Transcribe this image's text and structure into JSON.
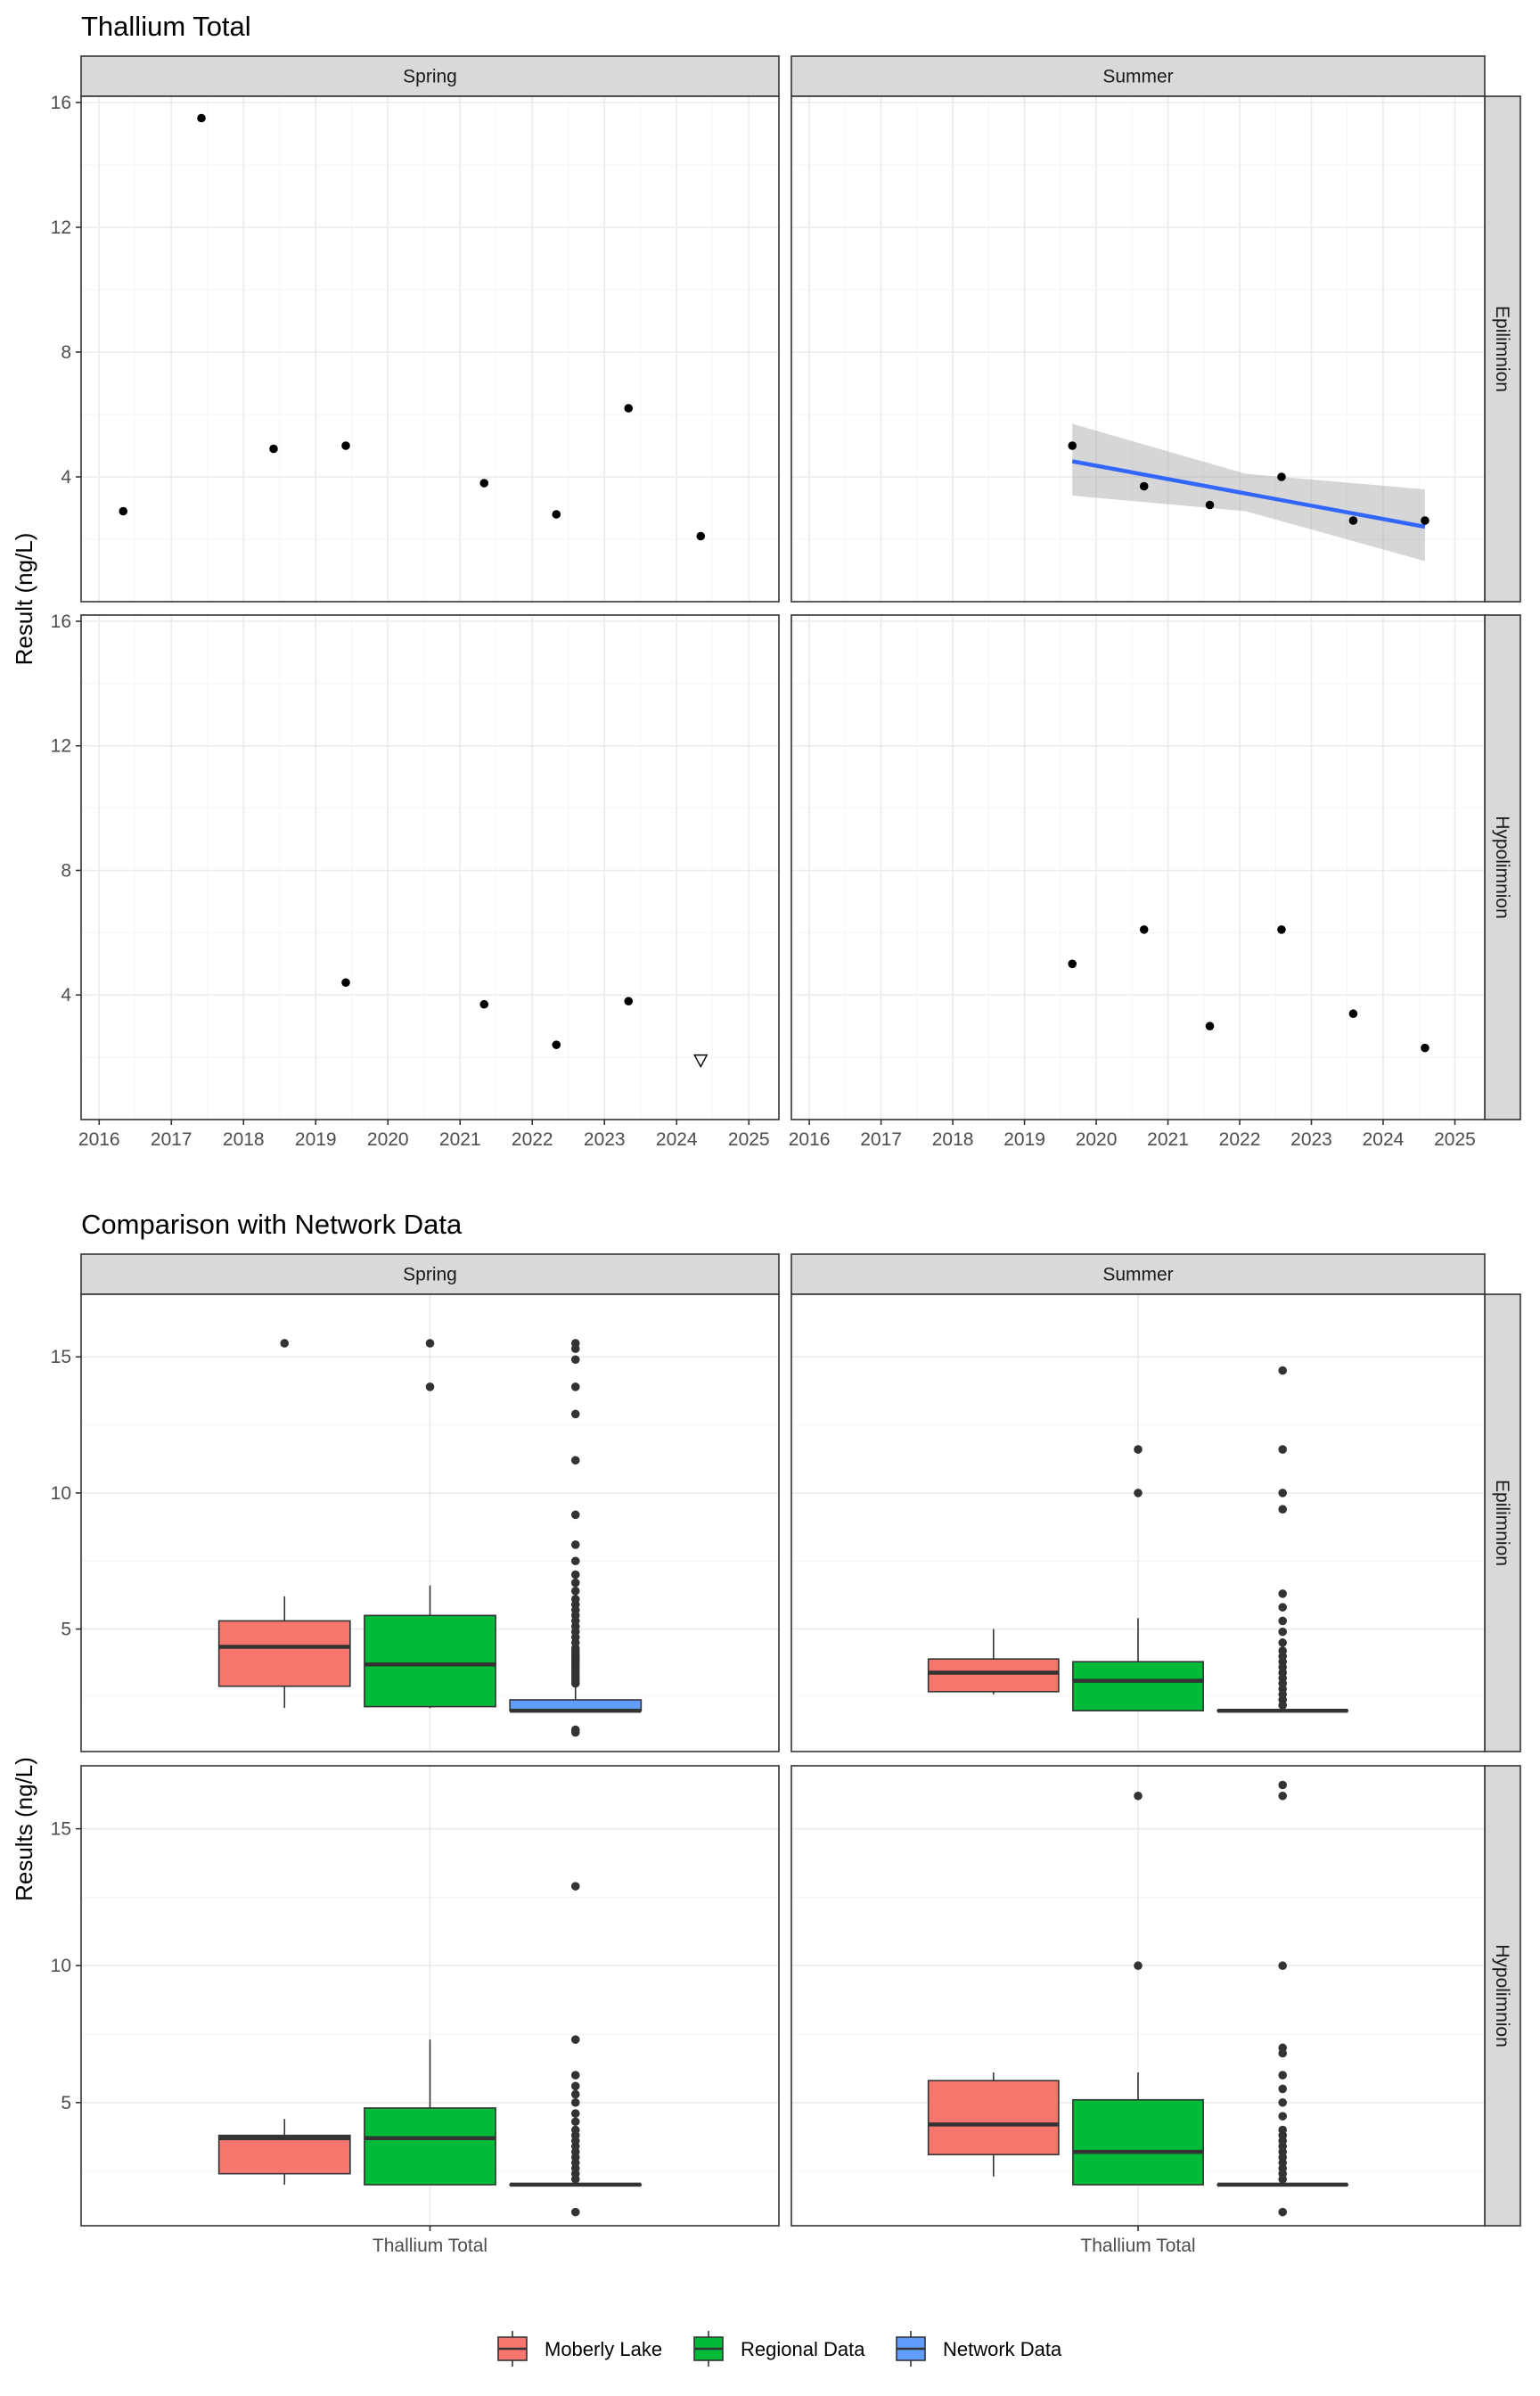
{
  "chart_data": [
    {
      "type": "scatter",
      "title": "Thallium Total",
      "ylabel": "Result (ng/L)",
      "xlabel": "",
      "x_type": "date",
      "xlim": [
        "2015-10",
        "2025-06"
      ],
      "ylim": [
        0,
        16.2
      ],
      "x_ticks": [
        "2016",
        "2017",
        "2018",
        "2019",
        "2020",
        "2021",
        "2022",
        "2023",
        "2024",
        "2025"
      ],
      "y_ticks": [
        "4",
        "8",
        "12",
        "16"
      ],
      "y_tick_values": [
        4,
        8,
        12,
        16
      ],
      "columns": [
        "Spring",
        "Summer"
      ],
      "rows": [
        "Epilimnion",
        "Hypolimnion"
      ],
      "grid": true,
      "panels": [
        {
          "column": "Spring",
          "row": "Epilimnion",
          "points": [
            {
              "x": "2016-05",
              "y": 2.9
            },
            {
              "x": "2017-06",
              "y": 15.5
            },
            {
              "x": "2018-06",
              "y": 4.9
            },
            {
              "x": "2019-06",
              "y": 5.0
            },
            {
              "x": "2021-05",
              "y": 3.8
            },
            {
              "x": "2022-05",
              "y": 2.8
            },
            {
              "x": "2023-05",
              "y": 6.2
            },
            {
              "x": "2024-05",
              "y": 2.1
            }
          ]
        },
        {
          "column": "Summer",
          "row": "Epilimnion",
          "points": [
            {
              "x": "2019-09",
              "y": 5.0
            },
            {
              "x": "2020-09",
              "y": 3.7
            },
            {
              "x": "2021-08",
              "y": 3.1
            },
            {
              "x": "2022-08",
              "y": 4.0
            },
            {
              "x": "2023-08",
              "y": 2.6
            },
            {
              "x": "2024-08",
              "y": 2.6
            }
          ],
          "trend": {
            "color": "#3366FF",
            "line": [
              {
                "x": "2019-09",
                "y": 4.5
              },
              {
                "x": "2024-08",
                "y": 2.4
              }
            ],
            "ci_upper": [
              {
                "x": "2019-09",
                "y": 5.7
              },
              {
                "x": "2022-02",
                "y": 4.1
              },
              {
                "x": "2024-08",
                "y": 3.6
              }
            ],
            "ci_lower": [
              {
                "x": "2019-09",
                "y": 3.4
              },
              {
                "x": "2022-02",
                "y": 2.9
              },
              {
                "x": "2024-08",
                "y": 1.3
              }
            ]
          }
        },
        {
          "column": "Spring",
          "row": "Hypolimnion",
          "points": [
            {
              "x": "2019-06",
              "y": 4.4
            },
            {
              "x": "2021-05",
              "y": 3.7
            },
            {
              "x": "2022-05",
              "y": 2.4
            },
            {
              "x": "2023-05",
              "y": 3.8
            },
            {
              "x": "2024-05",
              "y": 1.9,
              "marker": "open-triangle-down"
            }
          ]
        },
        {
          "column": "Summer",
          "row": "Hypolimnion",
          "points": [
            {
              "x": "2019-09",
              "y": 5.0
            },
            {
              "x": "2020-09",
              "y": 6.1
            },
            {
              "x": "2021-08",
              "y": 3.0
            },
            {
              "x": "2022-08",
              "y": 6.1
            },
            {
              "x": "2023-08",
              "y": 3.4
            },
            {
              "x": "2024-08",
              "y": 2.3
            }
          ]
        }
      ]
    },
    {
      "type": "box",
      "title": "Comparison with Network Data",
      "ylabel": "Results (ng/L)",
      "xlabel": "",
      "categories": [
        "Thallium Total"
      ],
      "ylim": [
        0.5,
        17.3
      ],
      "y_ticks": [
        "5",
        "10",
        "15"
      ],
      "y_tick_values": [
        5,
        10,
        15
      ],
      "columns": [
        "Spring",
        "Summer"
      ],
      "rows": [
        "Epilimnion",
        "Hypolimnion"
      ],
      "grid": true,
      "legend": {
        "position": "bottom",
        "entries": [
          {
            "name": "Moberly Lake",
            "color": "#F8766D"
          },
          {
            "name": "Regional Data",
            "color": "#00BA38"
          },
          {
            "name": "Network Data",
            "color": "#619CFF"
          }
        ]
      },
      "panels": [
        {
          "column": "Spring",
          "row": "Epilimnion",
          "boxes": [
            {
              "group": "Moberly Lake",
              "whisker_low": 2.1,
              "q1": 2.9,
              "median": 4.35,
              "q3": 5.3,
              "whisker_high": 6.2,
              "outliers": [
                15.5
              ]
            },
            {
              "group": "Regional Data",
              "whisker_low": 2.1,
              "q1": 2.15,
              "median": 3.7,
              "q3": 5.5,
              "whisker_high": 6.6,
              "outliers": [
                15.5,
                13.9
              ]
            },
            {
              "group": "Network Data",
              "whisker_low": 2.0,
              "q1": 2.0,
              "median": 2.0,
              "q3": 2.4,
              "whisker_high": 2.9,
              "outliers": [
                1.2,
                1.3,
                3.0,
                3.1,
                3.2,
                3.3,
                3.4,
                3.5,
                3.6,
                3.7,
                3.8,
                3.9,
                4.0,
                4.1,
                4.2,
                4.3,
                4.5,
                4.7,
                4.9,
                5.1,
                5.3,
                5.5,
                5.7,
                5.9,
                6.1,
                6.4,
                6.7,
                7.0,
                7.5,
                8.1,
                9.2,
                11.2,
                12.9,
                13.9,
                14.9,
                15.3,
                15.5
              ]
            }
          ]
        },
        {
          "column": "Summer",
          "row": "Epilimnion",
          "boxes": [
            {
              "group": "Moberly Lake",
              "whisker_low": 2.6,
              "q1": 2.7,
              "median": 3.4,
              "q3": 3.9,
              "whisker_high": 5.0,
              "outliers": []
            },
            {
              "group": "Regional Data",
              "whisker_low": 2.0,
              "q1": 2.0,
              "median": 3.1,
              "q3": 3.8,
              "whisker_high": 5.4,
              "outliers": [
                11.6,
                10.0
              ]
            },
            {
              "group": "Network Data",
              "whisker_low": 2.0,
              "q1": 2.0,
              "median": 2.0,
              "q3": 2.0,
              "whisker_high": 2.0,
              "outliers": [
                2.2,
                2.4,
                2.6,
                2.8,
                3.0,
                3.2,
                3.4,
                3.6,
                3.8,
                4.0,
                4.2,
                4.5,
                4.9,
                5.3,
                5.8,
                6.3,
                9.4,
                10.0,
                11.6,
                14.5
              ]
            }
          ]
        },
        {
          "column": "Spring",
          "row": "Hypolimnion",
          "boxes": [
            {
              "group": "Moberly Lake",
              "whisker_low": 2.0,
              "q1": 2.4,
              "median": 3.7,
              "q3": 3.8,
              "whisker_high": 4.4,
              "outliers": []
            },
            {
              "group": "Regional Data",
              "whisker_low": 2.0,
              "q1": 2.0,
              "median": 3.7,
              "q3": 4.8,
              "whisker_high": 7.3,
              "outliers": []
            },
            {
              "group": "Network Data",
              "whisker_low": 2.0,
              "q1": 2.0,
              "median": 2.0,
              "q3": 2.0,
              "whisker_high": 2.0,
              "outliers": [
                1.0,
                2.2,
                2.4,
                2.6,
                2.8,
                3.0,
                3.2,
                3.4,
                3.6,
                3.8,
                4.0,
                4.3,
                4.6,
                5.0,
                5.3,
                5.6,
                6.0,
                7.3,
                12.9
              ]
            }
          ]
        },
        {
          "column": "Summer",
          "row": "Hypolimnion",
          "boxes": [
            {
              "group": "Moberly Lake",
              "whisker_low": 2.3,
              "q1": 3.1,
              "median": 4.2,
              "q3": 5.8,
              "whisker_high": 6.1,
              "outliers": []
            },
            {
              "group": "Regional Data",
              "whisker_low": 2.0,
              "q1": 2.0,
              "median": 3.2,
              "q3": 5.1,
              "whisker_high": 6.1,
              "outliers": [
                16.2,
                10.0
              ]
            },
            {
              "group": "Network Data",
              "whisker_low": 2.0,
              "q1": 2.0,
              "median": 2.0,
              "q3": 2.0,
              "whisker_high": 2.0,
              "outliers": [
                1.0,
                2.2,
                2.4,
                2.6,
                2.8,
                3.0,
                3.2,
                3.4,
                3.6,
                3.8,
                4.0,
                4.5,
                5.0,
                5.5,
                6.0,
                6.8,
                7.0,
                10.0,
                16.2,
                16.6
              ]
            }
          ]
        }
      ]
    }
  ]
}
